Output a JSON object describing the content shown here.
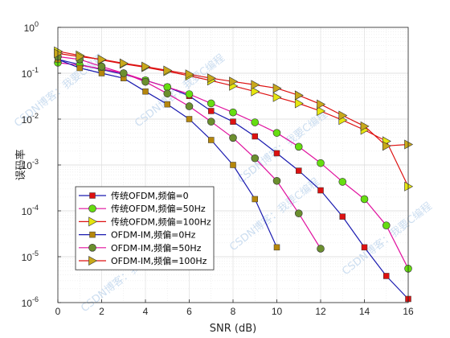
{
  "chart_data": {
    "type": "line",
    "xlabel": "SNR (dB)",
    "ylabel": "误码率",
    "x_scale": "linear",
    "y_scale": "log",
    "xlim": [
      0,
      16
    ],
    "ylim": [
      1e-06,
      1
    ],
    "x_ticks": [
      "0",
      "2",
      "4",
      "6",
      "8",
      "10",
      "12",
      "14",
      "16"
    ],
    "y_ticks": [
      {
        "base": "10",
        "exp": "0"
      },
      {
        "base": "10",
        "exp": "-1"
      },
      {
        "base": "10",
        "exp": "-2"
      },
      {
        "base": "10",
        "exp": "-3"
      },
      {
        "base": "10",
        "exp": "-4"
      },
      {
        "base": "10",
        "exp": "-5"
      },
      {
        "base": "10",
        "exp": "-6"
      }
    ],
    "grid": true,
    "legend_position": "lower-left",
    "series": [
      {
        "name": "传统OFDM,频偏=0",
        "color": "#1a1ab0",
        "marker": "square",
        "marker_fill": "#dd1111",
        "x": [
          0,
          1,
          2,
          3,
          4,
          5,
          6,
          7,
          8,
          9,
          10,
          11,
          12,
          13,
          14,
          15,
          16
        ],
        "y": [
          0.2,
          0.155,
          0.12,
          0.095,
          0.07,
          0.05,
          0.032,
          0.015,
          0.0088,
          0.0042,
          0.0018,
          0.00075,
          0.00028,
          7.5e-05,
          1.6e-05,
          3.8e-06,
          1.2e-06
        ]
      },
      {
        "name": "传统OFDM,频偏=50Hz",
        "color": "#e0109e",
        "marker": "circle",
        "marker_fill": "#66dd11",
        "x": [
          0,
          1,
          2,
          3,
          4,
          5,
          6,
          7,
          8,
          9,
          10,
          11,
          12,
          13,
          14,
          15,
          16
        ],
        "y": [
          0.17,
          0.15,
          0.125,
          0.1,
          0.07,
          0.05,
          0.035,
          0.022,
          0.014,
          0.0085,
          0.005,
          0.0025,
          0.0011,
          0.00043,
          0.00018,
          4.8e-05,
          5.5e-06
        ]
      },
      {
        "name": "传统OFDM,频偏=100Hz",
        "color": "#dd1111",
        "marker": "triangle-right",
        "marker_fill": "#e5e50f",
        "x": [
          0,
          1,
          2,
          3,
          4,
          5,
          6,
          7,
          8,
          9,
          10,
          11,
          12,
          13,
          14,
          15,
          16
        ],
        "y": [
          0.3,
          0.245,
          0.195,
          0.16,
          0.135,
          0.11,
          0.088,
          0.069,
          0.053,
          0.04,
          0.03,
          0.022,
          0.015,
          0.0095,
          0.0058,
          0.0033,
          0.00034
        ]
      },
      {
        "name": "OFDM-IM,频偏=0Hz",
        "color": "#1a1ab0",
        "marker": "square",
        "marker_fill": "#b5860b",
        "x": [
          0,
          1,
          2,
          3,
          4,
          5,
          6,
          7,
          8,
          9,
          10
        ],
        "y": [
          0.2,
          0.13,
          0.1,
          0.078,
          0.04,
          0.021,
          0.01,
          0.0035,
          0.001,
          0.00018,
          1.6e-05
        ]
      },
      {
        "name": "OFDM-IM,频偏=50Hz",
        "color": "#e0109e",
        "marker": "circle",
        "marker_fill": "#6b8f2e",
        "x": [
          0,
          1,
          2,
          3,
          4,
          5,
          6,
          7,
          8,
          9,
          10,
          11,
          12
        ],
        "y": [
          0.23,
          0.2,
          0.14,
          0.1,
          0.065,
          0.036,
          0.019,
          0.0088,
          0.0039,
          0.0014,
          0.00045,
          8.8e-05,
          1.5e-05
        ]
      },
      {
        "name": "OFDM-IM,频偏=100Hz",
        "color": "#dd1111",
        "marker": "triangle-right",
        "marker_fill": "#c8a81a",
        "x": [
          0,
          1,
          2,
          3,
          4,
          5,
          6,
          7,
          8,
          9,
          10,
          11,
          12,
          13,
          14,
          15,
          16
        ],
        "y": [
          0.27,
          0.23,
          0.2,
          0.165,
          0.14,
          0.115,
          0.095,
          0.078,
          0.066,
          0.056,
          0.047,
          0.033,
          0.021,
          0.012,
          0.007,
          0.0026,
          0.0028
        ]
      }
    ]
  },
  "watermark": {
    "text": "CSDN博客：我要C编程"
  }
}
